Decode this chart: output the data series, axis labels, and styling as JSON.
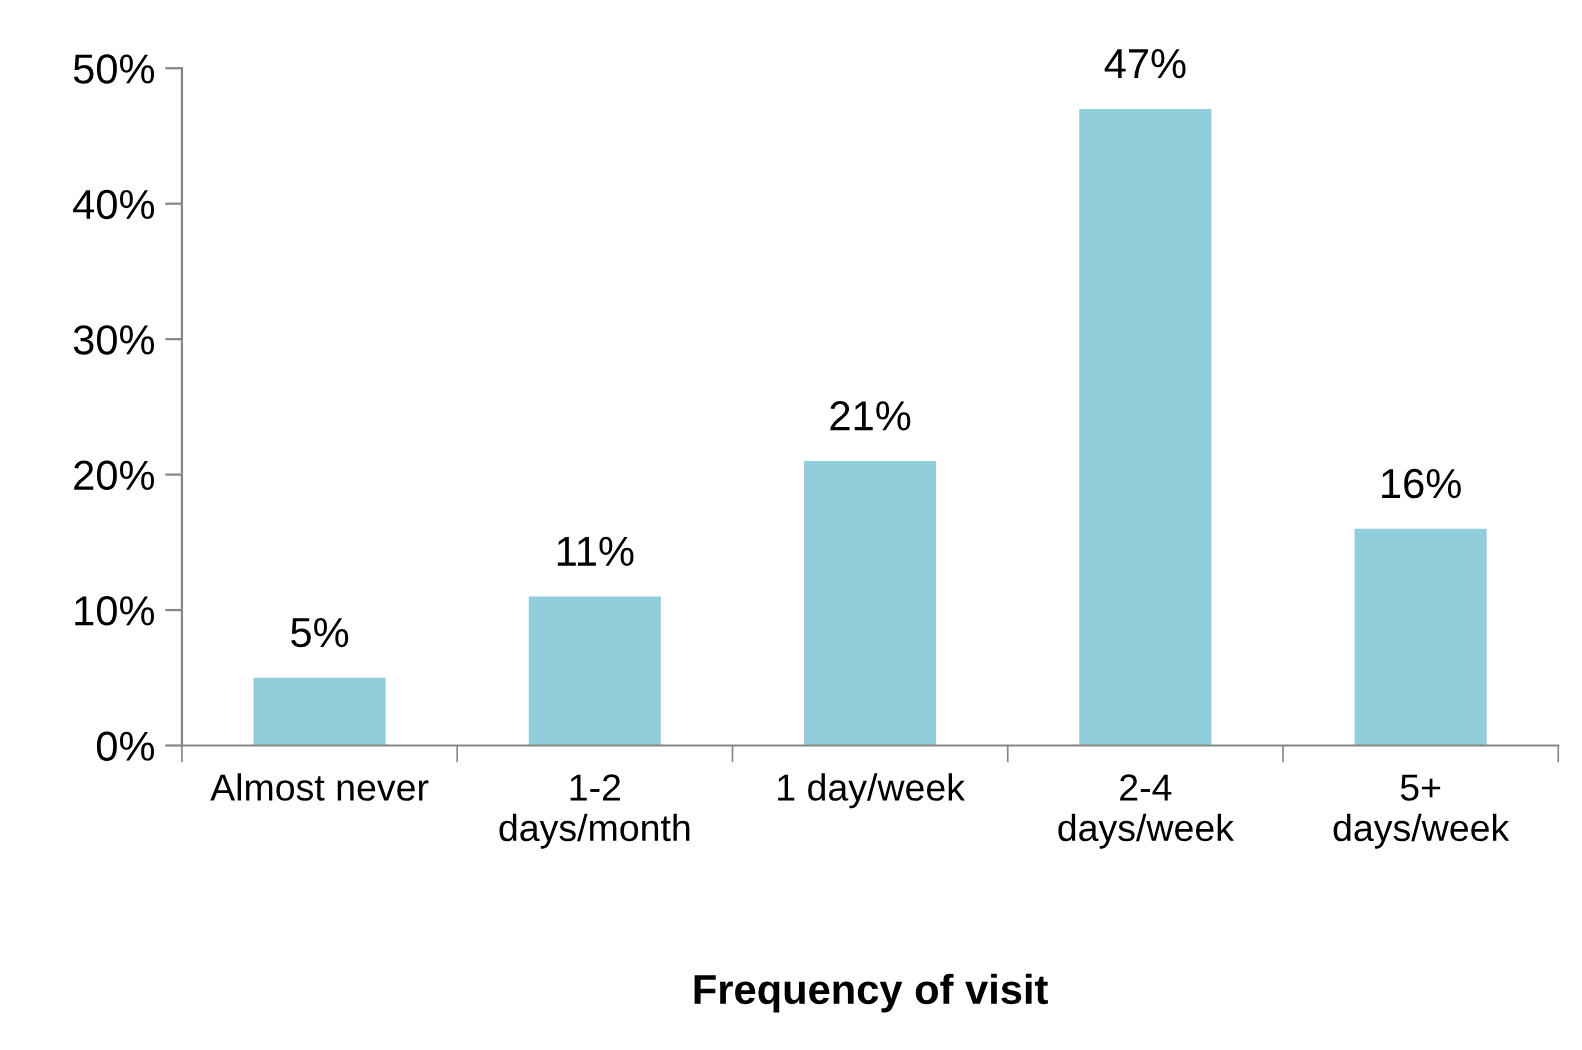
{
  "chart_data": {
    "type": "bar",
    "xlabel": "Frequency of visit",
    "categories": [
      "Almost never",
      "1-2\ndays/month",
      "1 day/week",
      "2-4\ndays/week",
      "5+\ndays/week"
    ],
    "values": [
      5,
      11,
      21,
      47,
      16
    ],
    "value_labels": [
      "5%",
      "11%",
      "21%",
      "47%",
      "16%"
    ],
    "color": "#92cddc",
    "ylim": [
      0,
      50
    ],
    "yticks": [
      {
        "value": 0,
        "label": "0%"
      },
      {
        "value": 10,
        "label": "10%"
      },
      {
        "value": 20,
        "label": "20%"
      },
      {
        "value": 30,
        "label": "30%"
      },
      {
        "value": 40,
        "label": "40%"
      },
      {
        "value": 50,
        "label": "50%"
      }
    ],
    "grid": false
  }
}
